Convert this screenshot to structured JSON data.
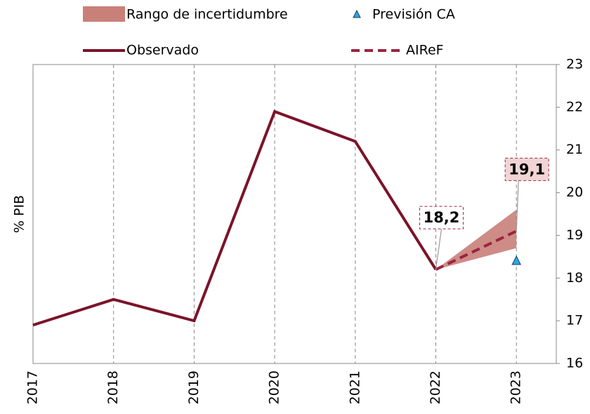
{
  "chart_data": {
    "type": "line",
    "y_label": "% PIB",
    "categories": [
      "2017",
      "2018",
      "2019",
      "2020",
      "2021",
      "2022",
      "2023"
    ],
    "ylim": [
      16,
      23
    ],
    "yticks": [
      16,
      17,
      18,
      19,
      20,
      21,
      22,
      23
    ],
    "range": {
      "name": "Rango de incertidumbre",
      "color": "#c98079",
      "lower": [
        null,
        null,
        null,
        null,
        null,
        18.2,
        18.7
      ],
      "upper": [
        null,
        null,
        null,
        null,
        null,
        18.2,
        19.6
      ]
    },
    "series": [
      {
        "name": "Observado",
        "color": "#7b1329",
        "style": "solid",
        "values": [
          16.9,
          17.5,
          17.0,
          21.9,
          21.2,
          18.2,
          null
        ]
      },
      {
        "name": "AIReF",
        "color": "#9b2440",
        "style": "dashed",
        "values": [
          null,
          null,
          null,
          null,
          null,
          18.2,
          19.1
        ],
        "value_labels": [
          null,
          null,
          null,
          null,
          null,
          "18,2",
          "19,1"
        ]
      },
      {
        "name": "Previsión CA",
        "color": "#29a8e0",
        "style": "marker",
        "values": [
          null,
          null,
          null,
          null,
          null,
          null,
          18.4
        ]
      }
    ]
  }
}
